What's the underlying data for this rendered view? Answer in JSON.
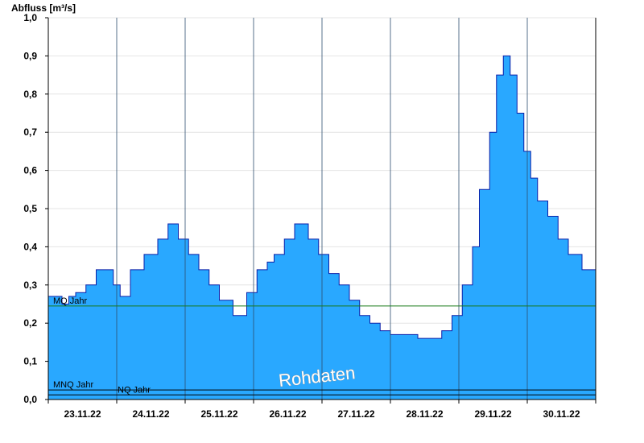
{
  "chart_data": {
    "type": "area",
    "ylabel": "Abfluss [m³/s]",
    "ylim": [
      0.0,
      1.0
    ],
    "yticks": [
      "0,0",
      "0,1",
      "0,2",
      "0,3",
      "0,4",
      "0,5",
      "0,6",
      "0,7",
      "0,8",
      "0,9",
      "1,0"
    ],
    "xlim": [
      0,
      8
    ],
    "xtick_labels": [
      "23.11.22",
      "24.11.22",
      "25.11.22",
      "26.11.22",
      "27.11.22",
      "28.11.22",
      "29.11.22",
      "30.11.22"
    ],
    "grid": true,
    "series": [
      {
        "x": [
          0.0,
          0.1,
          0.2,
          0.3,
          0.4,
          0.55,
          0.7,
          0.8,
          0.95,
          1.05,
          1.2,
          1.4,
          1.6,
          1.75,
          1.9,
          2.05,
          2.2,
          2.35,
          2.5,
          2.7,
          2.9,
          3.05,
          3.2,
          3.3,
          3.45,
          3.6,
          3.8,
          3.95,
          4.1,
          4.25,
          4.4,
          4.55,
          4.7,
          4.85,
          5.0,
          5.2,
          5.4,
          5.6,
          5.75,
          5.9,
          6.05,
          6.2,
          6.3,
          6.45,
          6.55,
          6.65,
          6.75,
          6.85,
          6.95,
          7.05,
          7.15,
          7.3,
          7.45,
          7.6,
          7.8,
          8.0
        ],
        "values": [
          0.27,
          0.27,
          0.25,
          0.27,
          0.28,
          0.3,
          0.34,
          0.34,
          0.3,
          0.27,
          0.34,
          0.38,
          0.42,
          0.46,
          0.42,
          0.38,
          0.34,
          0.3,
          0.26,
          0.22,
          0.28,
          0.34,
          0.36,
          0.38,
          0.42,
          0.46,
          0.42,
          0.38,
          0.33,
          0.3,
          0.26,
          0.22,
          0.2,
          0.18,
          0.17,
          0.17,
          0.16,
          0.16,
          0.18,
          0.22,
          0.3,
          0.4,
          0.55,
          0.7,
          0.85,
          0.9,
          0.85,
          0.75,
          0.65,
          0.58,
          0.52,
          0.48,
          0.42,
          0.38,
          0.34,
          0.3
        ],
        "fill": "#29a8ff",
        "stroke": "#0b1fa8"
      }
    ],
    "reference_lines": [
      {
        "name": "MQ Jahr",
        "value": 0.245,
        "color": "#1a7a1a"
      },
      {
        "name": "MNQ Jahr",
        "value": 0.025,
        "color": "#000000"
      },
      {
        "name": "NQ Jahr",
        "value": 0.012,
        "color": "#000000"
      }
    ],
    "annotation": "Rohdaten"
  }
}
